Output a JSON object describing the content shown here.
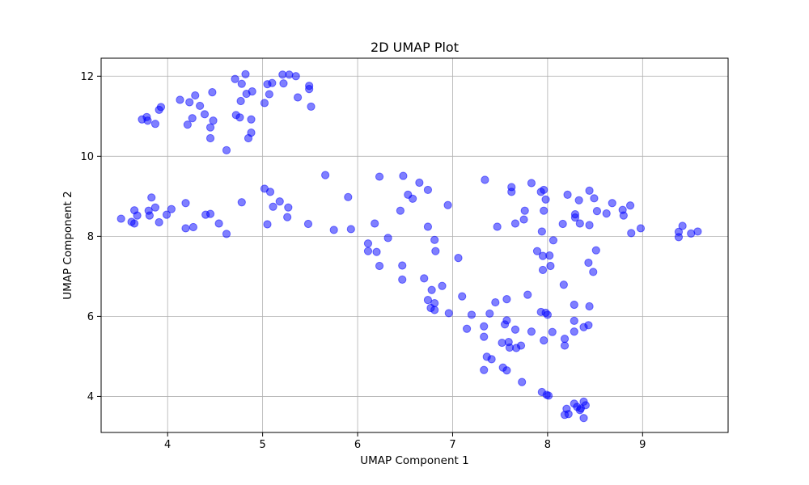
{
  "chart_data": {
    "type": "scatter",
    "title": "2D UMAP Plot",
    "xlabel": "UMAP Component 1",
    "ylabel": "UMAP Component 2",
    "xlim": [
      3.3,
      9.9
    ],
    "ylim": [
      3.1,
      12.45
    ],
    "xticks": [
      4,
      5,
      6,
      7,
      8,
      9
    ],
    "yticks": [
      4,
      6,
      8,
      10,
      12
    ],
    "grid": true,
    "marker_color": "#0000ff",
    "marker_alpha": 0.5,
    "points": [
      [
        4.71,
        11.93
      ],
      [
        4.82,
        12.05
      ],
      [
        5.05,
        11.8
      ],
      [
        5.1,
        11.83
      ],
      [
        5.21,
        12.04
      ],
      [
        5.28,
        12.04
      ],
      [
        5.35,
        12.0
      ],
      [
        5.22,
        11.82
      ],
      [
        5.49,
        11.76
      ],
      [
        5.49,
        11.68
      ],
      [
        4.78,
        11.81
      ],
      [
        4.83,
        11.56
      ],
      [
        4.89,
        11.62
      ],
      [
        5.07,
        11.55
      ],
      [
        5.37,
        11.47
      ],
      [
        4.47,
        11.6
      ],
      [
        4.29,
        11.52
      ],
      [
        4.13,
        11.41
      ],
      [
        4.23,
        11.35
      ],
      [
        4.34,
        11.26
      ],
      [
        5.02,
        11.33
      ],
      [
        5.51,
        11.24
      ],
      [
        4.77,
        11.38
      ],
      [
        3.93,
        11.23
      ],
      [
        3.91,
        11.16
      ],
      [
        4.39,
        11.05
      ],
      [
        4.26,
        10.95
      ],
      [
        4.72,
        11.03
      ],
      [
        4.76,
        10.97
      ],
      [
        4.88,
        10.92
      ],
      [
        4.48,
        10.89
      ],
      [
        3.78,
        10.98
      ],
      [
        3.73,
        10.92
      ],
      [
        3.79,
        10.89
      ],
      [
        3.87,
        10.81
      ],
      [
        4.21,
        10.79
      ],
      [
        4.45,
        10.72
      ],
      [
        4.88,
        10.59
      ],
      [
        4.85,
        10.45
      ],
      [
        4.45,
        10.45
      ],
      [
        4.62,
        10.15
      ],
      [
        5.66,
        9.53
      ],
      [
        6.23,
        9.49
      ],
      [
        6.48,
        9.51
      ],
      [
        6.65,
        9.34
      ],
      [
        6.74,
        9.16
      ],
      [
        6.53,
        9.04
      ],
      [
        6.58,
        8.94
      ],
      [
        6.45,
        8.64
      ],
      [
        6.95,
        8.78
      ],
      [
        5.9,
        8.98
      ],
      [
        5.02,
        9.19
      ],
      [
        5.08,
        9.11
      ],
      [
        5.18,
        8.87
      ],
      [
        5.27,
        8.72
      ],
      [
        5.11,
        8.74
      ],
      [
        5.26,
        8.48
      ],
      [
        5.05,
        8.3
      ],
      [
        5.48,
        8.31
      ],
      [
        5.75,
        8.16
      ],
      [
        5.93,
        8.18
      ],
      [
        4.78,
        8.85
      ],
      [
        4.19,
        8.83
      ],
      [
        4.04,
        8.68
      ],
      [
        3.83,
        8.97
      ],
      [
        3.87,
        8.72
      ],
      [
        3.8,
        8.64
      ],
      [
        3.65,
        8.65
      ],
      [
        3.68,
        8.52
      ],
      [
        3.81,
        8.52
      ],
      [
        3.99,
        8.54
      ],
      [
        3.51,
        8.44
      ],
      [
        3.62,
        8.36
      ],
      [
        3.65,
        8.32
      ],
      [
        3.91,
        8.35
      ],
      [
        4.4,
        8.54
      ],
      [
        4.45,
        8.56
      ],
      [
        4.54,
        8.32
      ],
      [
        4.27,
        8.23
      ],
      [
        4.19,
        8.2
      ],
      [
        4.62,
        8.06
      ],
      [
        6.18,
        8.32
      ],
      [
        6.32,
        7.96
      ],
      [
        6.11,
        7.82
      ],
      [
        6.11,
        7.63
      ],
      [
        6.2,
        7.61
      ],
      [
        6.23,
        7.26
      ],
      [
        6.47,
        7.27
      ],
      [
        6.47,
        6.92
      ],
      [
        6.74,
        8.24
      ],
      [
        6.81,
        7.91
      ],
      [
        6.82,
        7.63
      ],
      [
        7.06,
        7.46
      ],
      [
        6.7,
        6.95
      ],
      [
        6.89,
        6.76
      ],
      [
        6.78,
        6.66
      ],
      [
        6.74,
        6.41
      ],
      [
        6.81,
        6.33
      ],
      [
        6.77,
        6.21
      ],
      [
        6.81,
        6.16
      ],
      [
        6.96,
        6.08
      ],
      [
        7.1,
        6.5
      ],
      [
        7.2,
        6.04
      ],
      [
        7.15,
        5.69
      ],
      [
        7.33,
        5.75
      ],
      [
        7.39,
        6.07
      ],
      [
        7.45,
        6.35
      ],
      [
        7.57,
        6.43
      ],
      [
        7.57,
        5.9
      ],
      [
        7.55,
        5.8
      ],
      [
        7.66,
        5.67
      ],
      [
        7.33,
        5.49
      ],
      [
        7.52,
        5.34
      ],
      [
        7.59,
        5.36
      ],
      [
        7.6,
        5.22
      ],
      [
        7.67,
        5.21
      ],
      [
        7.72,
        5.27
      ],
      [
        7.36,
        4.99
      ],
      [
        7.41,
        4.93
      ],
      [
        7.53,
        4.72
      ],
      [
        7.57,
        4.65
      ],
      [
        7.33,
        4.66
      ],
      [
        7.73,
        4.36
      ],
      [
        7.34,
        9.41
      ],
      [
        7.62,
        9.23
      ],
      [
        7.62,
        9.11
      ],
      [
        7.83,
        9.33
      ],
      [
        7.93,
        9.11
      ],
      [
        7.96,
        9.16
      ],
      [
        7.98,
        8.92
      ],
      [
        7.76,
        8.64
      ],
      [
        7.75,
        8.42
      ],
      [
        7.66,
        8.32
      ],
      [
        7.47,
        8.24
      ],
      [
        7.96,
        8.64
      ],
      [
        7.94,
        8.12
      ],
      [
        7.89,
        7.63
      ],
      [
        7.95,
        7.51
      ],
      [
        8.02,
        7.52
      ],
      [
        8.03,
        7.26
      ],
      [
        7.95,
        7.16
      ],
      [
        8.06,
        7.9
      ],
      [
        8.16,
        8.31
      ],
      [
        8.21,
        9.04
      ],
      [
        8.29,
        8.55
      ],
      [
        8.29,
        8.47
      ],
      [
        8.33,
        8.9
      ],
      [
        8.34,
        8.32
      ],
      [
        8.44,
        9.14
      ],
      [
        8.44,
        8.28
      ],
      [
        8.49,
        8.95
      ],
      [
        8.52,
        8.63
      ],
      [
        8.62,
        8.57
      ],
      [
        8.68,
        8.83
      ],
      [
        8.79,
        8.66
      ],
      [
        8.8,
        8.52
      ],
      [
        8.87,
        8.77
      ],
      [
        8.88,
        8.08
      ],
      [
        8.98,
        8.2
      ],
      [
        8.51,
        7.65
      ],
      [
        8.43,
        7.34
      ],
      [
        8.48,
        7.11
      ],
      [
        8.17,
        6.79
      ],
      [
        7.79,
        6.54
      ],
      [
        8.28,
        6.29
      ],
      [
        8.44,
        6.25
      ],
      [
        7.93,
        6.11
      ],
      [
        7.98,
        6.09
      ],
      [
        8.0,
        6.04
      ],
      [
        8.28,
        5.89
      ],
      [
        8.38,
        5.73
      ],
      [
        8.43,
        5.78
      ],
      [
        8.05,
        5.61
      ],
      [
        7.83,
        5.62
      ],
      [
        8.28,
        5.62
      ],
      [
        8.18,
        5.44
      ],
      [
        7.96,
        5.4
      ],
      [
        8.18,
        5.27
      ],
      [
        7.94,
        4.11
      ],
      [
        7.99,
        4.04
      ],
      [
        8.01,
        4.02
      ],
      [
        8.28,
        3.82
      ],
      [
        8.31,
        3.74
      ],
      [
        8.35,
        3.7
      ],
      [
        8.38,
        3.87
      ],
      [
        8.4,
        3.78
      ],
      [
        8.2,
        3.69
      ],
      [
        8.34,
        3.66
      ],
      [
        8.18,
        3.54
      ],
      [
        8.22,
        3.56
      ],
      [
        8.38,
        3.46
      ],
      [
        9.38,
        8.11
      ],
      [
        9.38,
        7.98
      ],
      [
        9.42,
        8.26
      ],
      [
        9.51,
        8.07
      ],
      [
        9.58,
        8.12
      ]
    ]
  }
}
